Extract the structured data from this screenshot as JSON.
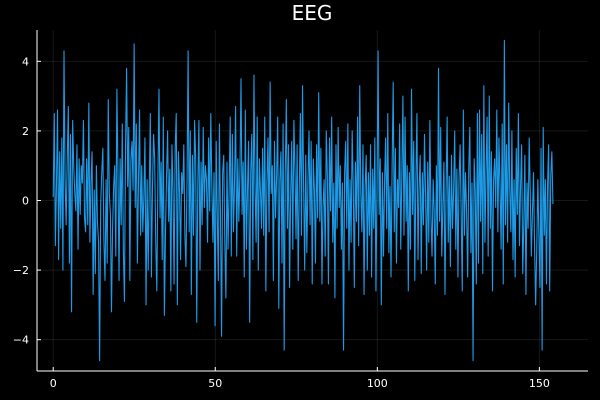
{
  "chart_data": {
    "type": "line",
    "title": "EEG",
    "xlabel": "",
    "ylabel": "",
    "xlim": [
      -5,
      165
    ],
    "ylim": [
      -4.9,
      4.9
    ],
    "xticks": [
      0,
      50,
      100,
      150
    ],
    "yticks": [
      -4,
      -2,
      0,
      2,
      4
    ],
    "grid": true,
    "legend": "none",
    "colors": {
      "background": "#000000",
      "line": "#1f9ae6",
      "text": "#ffffff"
    },
    "series": [
      {
        "x_start": 0,
        "x_step": 0.333,
        "values": [
          0.1,
          2.5,
          -1.3,
          0.4,
          2.6,
          -1.7,
          1.4,
          -0.8,
          1.8,
          -2.0,
          4.3,
          0.6,
          -0.7,
          1.2,
          2.7,
          -1.8,
          1.9,
          -3.2,
          2.3,
          1.0,
          0.2,
          -0.3,
          1.6,
          -1.4,
          1.2,
          -0.4,
          1.0,
          0.5,
          2.3,
          -0.5,
          -0.9,
          1.2,
          -0.7,
          2.8,
          -1.2,
          0.5,
          1.4,
          -2.7,
          0.3,
          -2.1,
          1.0,
          -0.6,
          -1.2,
          -4.6,
          -0.1,
          0.8,
          1.5,
          -1.2,
          -2.3,
          0.6,
          -1.8,
          2.9,
          0.2,
          -0.4,
          -3.2,
          -0.8,
          0.4,
          1.0,
          -1.6,
          3.2,
          0.8,
          -2.3,
          1.2,
          -0.7,
          2.2,
          -1.4,
          -2.9,
          1.5,
          3.8,
          0.4,
          2.1,
          -2.3,
          1.2,
          1.7,
          0.3,
          4.5,
          -0.2,
          2.2,
          -1.8,
          0.5,
          2.6,
          -1.0,
          1.0,
          -0.9,
          0.1,
          1.8,
          -3.0,
          0.6,
          -2.0,
          0.4,
          2.5,
          -2.2,
          0.4,
          1.9,
          1.2,
          -1.2,
          -2.6,
          0.6,
          3.2,
          -0.5,
          1.1,
          -1.7,
          2.4,
          -3.3,
          -1.0,
          0.7,
          2.0,
          -0.6,
          0.9,
          -2.6,
          1.6,
          0.3,
          -2.4,
          1.5,
          2.5,
          -3.0,
          1.4,
          0.3,
          -1.7,
          0.8,
          0.2,
          1.6,
          -1.0,
          -1.9,
          0.6,
          4.3,
          -0.9,
          2.0,
          -2.7,
          1.3,
          -1.0,
          2.3,
          1.2,
          -3.5,
          0.5,
          2.3,
          -2.0,
          1.1,
          -0.7,
          2.1,
          -0.2,
          1.0,
          0.6,
          -1.2,
          1.8,
          -0.3,
          2.5,
          0.4,
          -1.2,
          0.8,
          -3.6,
          1.7,
          -0.4,
          -2.3,
          2.2,
          -0.5,
          -3.9,
          0.8,
          1.3,
          -1.2,
          -2.8,
          1.1,
          -1.4,
          0.3,
          2.4,
          -1.6,
          1.9,
          -0.9,
          0.5,
          2.7,
          -1.6,
          1.2,
          -0.6,
          0.8,
          3.5,
          -0.4,
          1.1,
          -2.2,
          2.6,
          -1.4,
          0.3,
          1.7,
          -3.5,
          0.8,
          1.9,
          -1.7,
          3.6,
          0.4,
          -1.2,
          2.4,
          -2.0,
          1.2,
          0.3,
          -0.8,
          1.5,
          -1.0,
          2.4,
          -2.6,
          0.5,
          1.8,
          -0.9,
          3.4,
          0.2,
          1.0,
          -2.3,
          1.7,
          -0.5,
          0.7,
          2.4,
          -3.1,
          0.6,
          1.4,
          -1.8,
          2.2,
          -4.3,
          0.8,
          2.9,
          -0.8,
          1.6,
          -2.5,
          0.1,
          1.7,
          -1.4,
          2.3,
          0.9,
          -1.1,
          1.6,
          -2.3,
          0.4,
          2.5,
          -1.0,
          3.3,
          0.4,
          -2.0,
          1.3,
          -1.5,
          0.5,
          2.0,
          -0.7,
          1.7,
          -2.4,
          1.2,
          0.3,
          -1.8,
          1.6,
          -0.5,
          3.1,
          -0.6,
          1.5,
          -2.4,
          -0.2,
          0.6,
          -1.6,
          2.0,
          0.7,
          -2.4,
          1.8,
          -0.3,
          2.4,
          -1.2,
          0.5,
          -2.8,
          1.6,
          -0.8,
          2.1,
          -0.2,
          1.0,
          -1.4,
          0.5,
          -4.3,
          0.8,
          1.7,
          -0.8,
          2.2,
          -2.0,
          0.6,
          -1.2,
          2.0,
          0.4,
          -2.5,
          1.1,
          -0.6,
          2.4,
          -1.3,
          3.3,
          0.2,
          -0.9,
          1.6,
          -2.7,
          0.4,
          1.3,
          -2.0,
          0.8,
          -1.0,
          1.6,
          -2.2,
          0.9,
          -0.8,
          1.8,
          -2.6,
          0.3,
          4.3,
          -0.4,
          1.2,
          -3.0,
          0.8,
          -1.6,
          0.5,
          1.8,
          -0.8,
          2.5,
          -1.5,
          0.4,
          -2.2,
          1.0,
          3.4,
          -0.9,
          1.5,
          -1.8,
          0.6,
          -0.2,
          2.2,
          -1.4,
          0.7,
          3.0,
          -1.0,
          2.4,
          -0.6,
          1.0,
          -2.6,
          0.8,
          -1.4,
          3.2,
          -0.4,
          1.7,
          -2.3,
          0.5,
          2.5,
          -1.7,
          0.4,
          1.3,
          -2.1,
          0.8,
          -0.7,
          1.9,
          0.2,
          -2.0,
          1.1,
          -1.2,
          2.3,
          -0.5,
          -1.6,
          0.6,
          -0.3,
          -2.4,
          1.0,
          -1.0,
          3.8,
          -0.6,
          2.1,
          -1.6,
          -0.2,
          1.1,
          -2.7,
          0.3,
          2.4,
          -1.2,
          0.7,
          -1.9,
          1.3,
          -0.8,
          0.3,
          2.0,
          -1.4,
          0.9,
          -2.2,
          0.6,
          1.6,
          -0.4,
          -2.6,
          2.6,
          -1.0,
          0.8,
          -0.3,
          -2.2,
          0.9,
          2.1,
          -1.5,
          0.5,
          -4.6,
          1.2,
          0.3,
          -2.4,
          2.5,
          -1.8,
          2.6,
          -0.6,
          1.9,
          -2.1,
          3.3,
          -1.2,
          0.8,
          2.4,
          -1.6,
          3.0,
          -0.8,
          1.4,
          -2.6,
          0.6,
          1.2,
          -0.2,
          2.6,
          -0.9,
          1.8,
          0.4,
          -1.4,
          2.2,
          -2.4,
          4.6,
          -0.7,
          1.6,
          -1.2,
          2.8,
          0.3,
          -0.9,
          2.0,
          -1.7,
          0.6,
          -2.2,
          1.5,
          -0.4,
          2.5,
          -1.3,
          0.4,
          1.6,
          -2.1,
          -0.7,
          1.3,
          -2.7,
          0.5,
          -0.8,
          1.8,
          0.2,
          -1.6,
          -0.4,
          0.8,
          -1.3,
          -3.0,
          -1.4,
          0.6,
          -1.0,
          -2.5,
          1.5,
          -4.3,
          2.1,
          -1.0,
          0.6,
          -2.4,
          0.4,
          1.6,
          -2.6,
          0.7,
          1.4,
          -0.1
        ]
      }
    ]
  }
}
